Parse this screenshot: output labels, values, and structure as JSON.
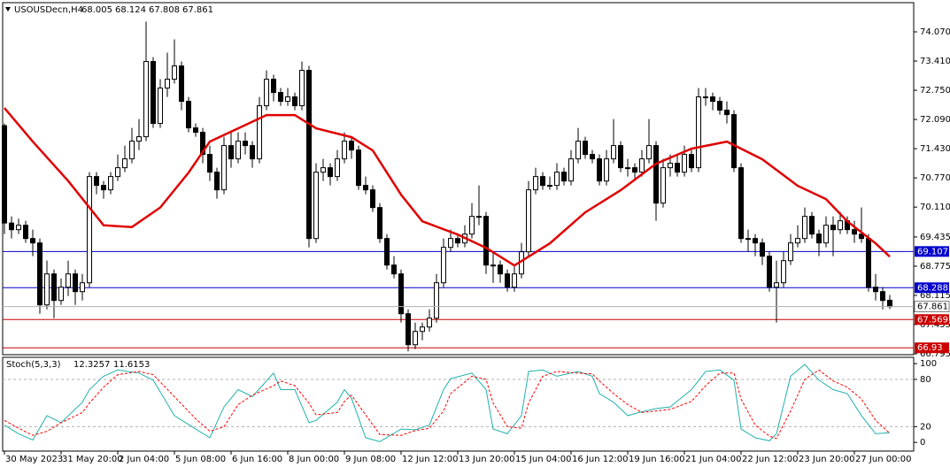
{
  "chart_data": [
    {
      "type": "candlestick",
      "symbol": "USOUSDecn,H4",
      "ohlc": [
        68.005,
        68.124,
        67.808,
        67.861
      ],
      "color_up": "#ffffff",
      "color_down": "#000000",
      "xlim": [
        -0.25,
        128.375
      ],
      "ylim": [
        66.775,
        74.73
      ],
      "yticks": [
        {
          "value": 74.07,
          "label": "74.070"
        },
        {
          "value": 73.41,
          "label": "73.410"
        },
        {
          "value": 72.75,
          "label": "72.750"
        },
        {
          "value": 72.09,
          "label": "72.090"
        },
        {
          "value": 71.43,
          "label": "71.430"
        },
        {
          "value": 70.77,
          "label": "70.770"
        },
        {
          "value": 70.11,
          "label": "70.110"
        },
        69.435,
        68.775,
        68.115,
        67.455,
        66.795
      ],
      "xticks": [
        {
          "value": 0,
          "label": "30 May 2023"
        },
        {
          "value": 8,
          "label": "31 May 20:00"
        },
        {
          "value": 16,
          "label": "2 Jun 04:00"
        },
        {
          "value": 24,
          "label": "5 Jun 08:00"
        },
        {
          "value": 32,
          "label": "6 Jun 16:00"
        },
        {
          "value": 40,
          "label": "8 Jun 00:00"
        },
        {
          "value": 48,
          "label": "9 Jun 08:00"
        },
        {
          "value": 56,
          "label": "12 Jun 12:00"
        },
        {
          "value": 64,
          "label": "13 Jun 20:00"
        },
        {
          "value": 72,
          "label": "15 Jun 04:00"
        },
        {
          "value": 80,
          "label": "16 Jun 12:00"
        },
        {
          "value": 88,
          "label": "19 Jun 16:00"
        },
        {
          "value": 96,
          "label": "21 Jun 04:00"
        },
        {
          "value": 104,
          "label": "22 Jun 12:00"
        },
        {
          "value": 112,
          "label": "23 Jun 20:00"
        },
        {
          "value": 120,
          "label": "27 Jun 00:00"
        }
      ],
      "levels": [
        {
          "value": 69.107,
          "color": "#0000cc"
        },
        {
          "value": 68.288,
          "color": "#0000cc"
        },
        {
          "value": 67.569,
          "color": "#cc0000"
        },
        {
          "value": 66.93,
          "color": "#cc0000"
        }
      ],
      "last_price_color": "#b0b0b0",
      "ma": {
        "color": "#e00000",
        "x": [
          0,
          4,
          9,
          14,
          18,
          22,
          26,
          29,
          33,
          37,
          41,
          44,
          49,
          52,
          56,
          59,
          64,
          68,
          72,
          77,
          82,
          87,
          92,
          97,
          102,
          107,
          112,
          116,
          119,
          123,
          125
        ],
        "values": [
          72.35,
          71.59,
          70.7,
          69.7,
          69.66,
          70.1,
          70.89,
          71.59,
          71.89,
          72.19,
          72.19,
          71.89,
          71.69,
          71.39,
          70.39,
          69.79,
          69.49,
          69.19,
          68.79,
          69.29,
          69.99,
          70.49,
          71.09,
          71.43,
          71.59,
          71.19,
          70.59,
          70.29,
          69.79,
          69.29,
          68.99
        ]
      },
      "candles": [
        [
          71.95,
          72.0,
          69.5,
          69.75
        ],
        [
          69.75,
          69.9,
          69.4,
          69.6
        ],
        [
          69.6,
          69.85,
          69.5,
          69.7
        ],
        [
          69.7,
          69.8,
          69.3,
          69.4
        ],
        [
          69.4,
          69.6,
          69.0,
          69.3
        ],
        [
          69.3,
          69.4,
          67.7,
          67.9
        ],
        [
          67.9,
          68.9,
          67.8,
          68.6
        ],
        [
          68.6,
          68.7,
          67.6,
          68.0
        ],
        [
          68.0,
          68.5,
          67.9,
          68.3
        ],
        [
          68.3,
          68.9,
          68.1,
          68.6
        ],
        [
          68.6,
          68.7,
          67.9,
          68.2
        ],
        [
          68.2,
          68.6,
          68.0,
          68.4
        ],
        [
          68.4,
          70.9,
          68.3,
          70.8
        ],
        [
          70.8,
          70.9,
          70.4,
          70.6
        ],
        [
          70.6,
          70.7,
          70.3,
          70.5
        ],
        [
          70.5,
          70.9,
          70.4,
          70.8
        ],
        [
          70.8,
          71.3,
          70.7,
          71.0
        ],
        [
          71.0,
          71.5,
          70.9,
          71.2
        ],
        [
          71.2,
          71.9,
          71.1,
          71.6
        ],
        [
          71.6,
          72.1,
          71.4,
          71.7
        ],
        [
          71.7,
          74.3,
          71.6,
          73.4
        ],
        [
          73.4,
          73.5,
          71.9,
          72.0
        ],
        [
          72.0,
          73.0,
          71.9,
          72.8
        ],
        [
          72.8,
          73.6,
          72.6,
          73.0
        ],
        [
          73.0,
          73.9,
          72.9,
          73.3
        ],
        [
          73.3,
          73.4,
          72.3,
          72.5
        ],
        [
          72.5,
          72.6,
          71.8,
          71.9
        ],
        [
          71.9,
          72.0,
          71.7,
          71.8
        ],
        [
          71.8,
          71.9,
          71.1,
          71.3
        ],
        [
          71.3,
          71.5,
          70.7,
          70.9
        ],
        [
          70.9,
          71.0,
          70.3,
          70.5
        ],
        [
          70.5,
          71.7,
          70.4,
          71.5
        ],
        [
          71.5,
          71.8,
          71.0,
          71.2
        ],
        [
          71.2,
          71.8,
          71.1,
          71.6
        ],
        [
          71.6,
          71.8,
          71.3,
          71.5
        ],
        [
          71.5,
          71.6,
          71.0,
          71.2
        ],
        [
          71.2,
          72.6,
          71.1,
          72.4
        ],
        [
          72.4,
          73.2,
          72.3,
          73.0
        ],
        [
          73.0,
          73.1,
          72.5,
          72.7
        ],
        [
          72.7,
          72.8,
          72.4,
          72.5
        ],
        [
          72.5,
          72.8,
          72.4,
          72.6
        ],
        [
          72.6,
          72.7,
          72.3,
          72.4
        ],
        [
          72.4,
          73.4,
          72.3,
          73.2
        ],
        [
          73.2,
          73.3,
          69.2,
          69.4
        ],
        [
          69.4,
          71.1,
          69.3,
          70.9
        ],
        [
          70.9,
          71.2,
          70.7,
          71.0
        ],
        [
          71.0,
          71.1,
          70.6,
          70.8
        ],
        [
          70.8,
          71.4,
          70.7,
          71.2
        ],
        [
          71.2,
          71.8,
          71.1,
          71.6
        ],
        [
          71.6,
          71.7,
          71.2,
          71.4
        ],
        [
          71.4,
          71.5,
          70.5,
          70.6
        ],
        [
          70.6,
          70.8,
          70.4,
          70.5
        ],
        [
          70.5,
          70.6,
          70.0,
          70.1
        ],
        [
          70.1,
          70.2,
          69.3,
          69.4
        ],
        [
          69.4,
          69.5,
          68.7,
          68.8
        ],
        [
          68.8,
          69.0,
          68.5,
          68.6
        ],
        [
          68.6,
          68.7,
          67.5,
          67.7
        ],
        [
          67.7,
          67.8,
          66.85,
          67.0
        ],
        [
          67.0,
          67.5,
          66.9,
          67.3
        ],
        [
          67.3,
          67.5,
          67.1,
          67.4
        ],
        [
          67.4,
          67.8,
          67.3,
          67.6
        ],
        [
          67.6,
          68.6,
          67.5,
          68.4
        ],
        [
          68.4,
          69.4,
          68.3,
          69.2
        ],
        [
          69.2,
          69.6,
          69.1,
          69.4
        ],
        [
          69.4,
          69.5,
          69.2,
          69.3
        ],
        [
          69.3,
          69.7,
          69.2,
          69.5
        ],
        [
          69.5,
          70.2,
          69.4,
          69.9
        ],
        [
          69.9,
          70.6,
          69.7,
          69.9
        ],
        [
          69.9,
          70.0,
          68.6,
          68.8
        ],
        [
          68.8,
          69.1,
          68.4,
          68.8
        ],
        [
          68.8,
          68.9,
          68.4,
          68.6
        ],
        [
          68.6,
          68.7,
          68.2,
          68.3
        ],
        [
          68.3,
          68.8,
          68.2,
          68.6
        ],
        [
          68.6,
          69.3,
          68.5,
          69.1
        ],
        [
          69.1,
          70.7,
          69.0,
          70.5
        ],
        [
          70.5,
          71.0,
          70.4,
          70.8
        ],
        [
          70.8,
          70.9,
          70.5,
          70.6
        ],
        [
          70.6,
          70.8,
          70.5,
          70.6
        ],
        [
          70.6,
          71.1,
          70.5,
          70.9
        ],
        [
          70.9,
          71.0,
          70.6,
          70.7
        ],
        [
          70.7,
          71.4,
          70.6,
          71.2
        ],
        [
          71.2,
          71.9,
          71.1,
          71.6
        ],
        [
          71.6,
          71.7,
          71.2,
          71.3
        ],
        [
          71.3,
          71.4,
          71.1,
          71.2
        ],
        [
          71.2,
          71.3,
          70.6,
          70.7
        ],
        [
          70.7,
          71.4,
          70.6,
          71.2
        ],
        [
          71.2,
          72.1,
          71.1,
          71.5
        ],
        [
          71.5,
          71.6,
          70.9,
          71.0
        ],
        [
          71.0,
          71.2,
          70.8,
          71.0
        ],
        [
          71.0,
          71.1,
          70.7,
          70.9
        ],
        [
          70.9,
          71.4,
          70.8,
          71.2
        ],
        [
          71.2,
          72.1,
          71.1,
          71.5
        ],
        [
          71.5,
          71.6,
          69.8,
          70.2
        ],
        [
          70.2,
          71.2,
          70.1,
          71.0
        ],
        [
          71.0,
          71.3,
          70.8,
          71.1
        ],
        [
          71.1,
          71.3,
          70.8,
          70.9
        ],
        [
          70.9,
          71.5,
          70.8,
          71.3
        ],
        [
          71.3,
          71.4,
          70.9,
          71.0
        ],
        [
          71.0,
          72.8,
          70.9,
          72.6
        ],
        [
          72.6,
          72.8,
          72.4,
          72.6
        ],
        [
          72.6,
          72.7,
          72.3,
          72.5
        ],
        [
          72.5,
          72.6,
          72.2,
          72.3
        ],
        [
          72.3,
          72.5,
          72.0,
          72.2
        ],
        [
          72.2,
          72.3,
          70.9,
          71.0
        ],
        [
          71.0,
          71.1,
          69.3,
          69.4
        ],
        [
          69.4,
          69.6,
          69.1,
          69.4
        ],
        [
          69.4,
          69.5,
          69.0,
          69.3
        ],
        [
          69.3,
          69.4,
          68.8,
          69.0
        ],
        [
          69.0,
          69.1,
          68.2,
          68.3
        ],
        [
          68.3,
          68.9,
          67.5,
          68.4
        ],
        [
          68.4,
          69.1,
          68.3,
          68.9
        ],
        [
          68.9,
          69.5,
          68.8,
          69.3
        ],
        [
          69.3,
          69.7,
          69.2,
          69.4
        ],
        [
          69.4,
          70.1,
          69.3,
          69.9
        ],
        [
          69.9,
          70.0,
          69.4,
          69.5
        ],
        [
          69.5,
          69.6,
          69.0,
          69.3
        ],
        [
          69.3,
          69.9,
          69.2,
          69.7
        ],
        [
          69.7,
          69.9,
          69.0,
          69.6
        ],
        [
          69.6,
          70.0,
          69.5,
          69.8
        ],
        [
          69.8,
          69.9,
          69.5,
          69.6
        ],
        [
          69.6,
          69.8,
          69.3,
          69.5
        ],
        [
          69.5,
          70.1,
          69.3,
          69.4
        ],
        [
          69.4,
          69.5,
          68.2,
          68.3
        ],
        [
          68.3,
          68.6,
          68.0,
          68.2
        ],
        [
          68.2,
          68.3,
          67.8,
          68.0
        ],
        [
          68.005,
          68.124,
          67.808,
          67.861
        ]
      ]
    },
    {
      "type": "stochastic",
      "title": "Stoch(5,3,3)",
      "xlim": [
        -0.25,
        128.375
      ],
      "ylim": [
        -11,
        108
      ],
      "yticks": [
        100,
        80,
        20,
        0
      ],
      "dashed_levels": [
        80,
        20
      ],
      "series": [
        {
          "color": "#20b2aa",
          "dash": false,
          "x": [
            0,
            2,
            4,
            6,
            8,
            11,
            12,
            14,
            16,
            19,
            21,
            24,
            27,
            29,
            31,
            33,
            35,
            38,
            39,
            41,
            43,
            44,
            47,
            48,
            49,
            51,
            53,
            56,
            58,
            60,
            62,
            63,
            66,
            68,
            69,
            71,
            73,
            74,
            76,
            78,
            81,
            83,
            84,
            86,
            88,
            90,
            92,
            94,
            97,
            99,
            101,
            103,
            104,
            106,
            108,
            109,
            111,
            113,
            115,
            117,
            119,
            121,
            123,
            125
          ],
          "values": [
            22,
            11,
            3,
            34,
            25,
            51,
            67,
            84,
            92,
            88,
            79,
            34,
            17,
            6,
            45,
            67,
            58,
            88,
            67,
            67,
            25,
            28,
            51,
            67,
            56,
            6,
            1,
            17,
            16,
            22,
            67,
            81,
            88,
            67,
            17,
            11,
            34,
            90,
            92,
            84,
            90,
            84,
            62,
            51,
            34,
            39,
            43,
            45,
            67,
            90,
            92,
            79,
            17,
            6,
            2,
            11,
            84,
            99,
            79,
            67,
            62,
            34,
            11,
            12.3257
          ]
        },
        {
          "color": "#ff0000",
          "dash": true,
          "x": [
            0,
            2,
            4,
            6,
            8,
            11,
            12,
            14,
            16,
            19,
            21,
            24,
            27,
            29,
            31,
            33,
            35,
            38,
            39,
            41,
            43,
            44,
            47,
            48,
            49,
            51,
            53,
            56,
            58,
            60,
            62,
            63,
            66,
            68,
            69,
            71,
            73,
            74,
            76,
            78,
            81,
            83,
            84,
            86,
            88,
            90,
            92,
            94,
            97,
            99,
            101,
            103,
            104,
            106,
            108,
            109,
            111,
            113,
            115,
            117,
            119,
            121,
            123,
            125
          ],
          "values": [
            28,
            18,
            9,
            14,
            25,
            38,
            50,
            70,
            86,
            90,
            86,
            58,
            30,
            14,
            20,
            48,
            60,
            72,
            78,
            72,
            50,
            35,
            38,
            52,
            60,
            35,
            10,
            9,
            15,
            18,
            40,
            62,
            84,
            80,
            50,
            20,
            18,
            50,
            84,
            90,
            88,
            87,
            78,
            62,
            48,
            38,
            40,
            42,
            52,
            72,
            88,
            88,
            55,
            22,
            8,
            5,
            40,
            80,
            92,
            78,
            70,
            55,
            28,
            11.6153
          ]
        }
      ]
    }
  ]
}
